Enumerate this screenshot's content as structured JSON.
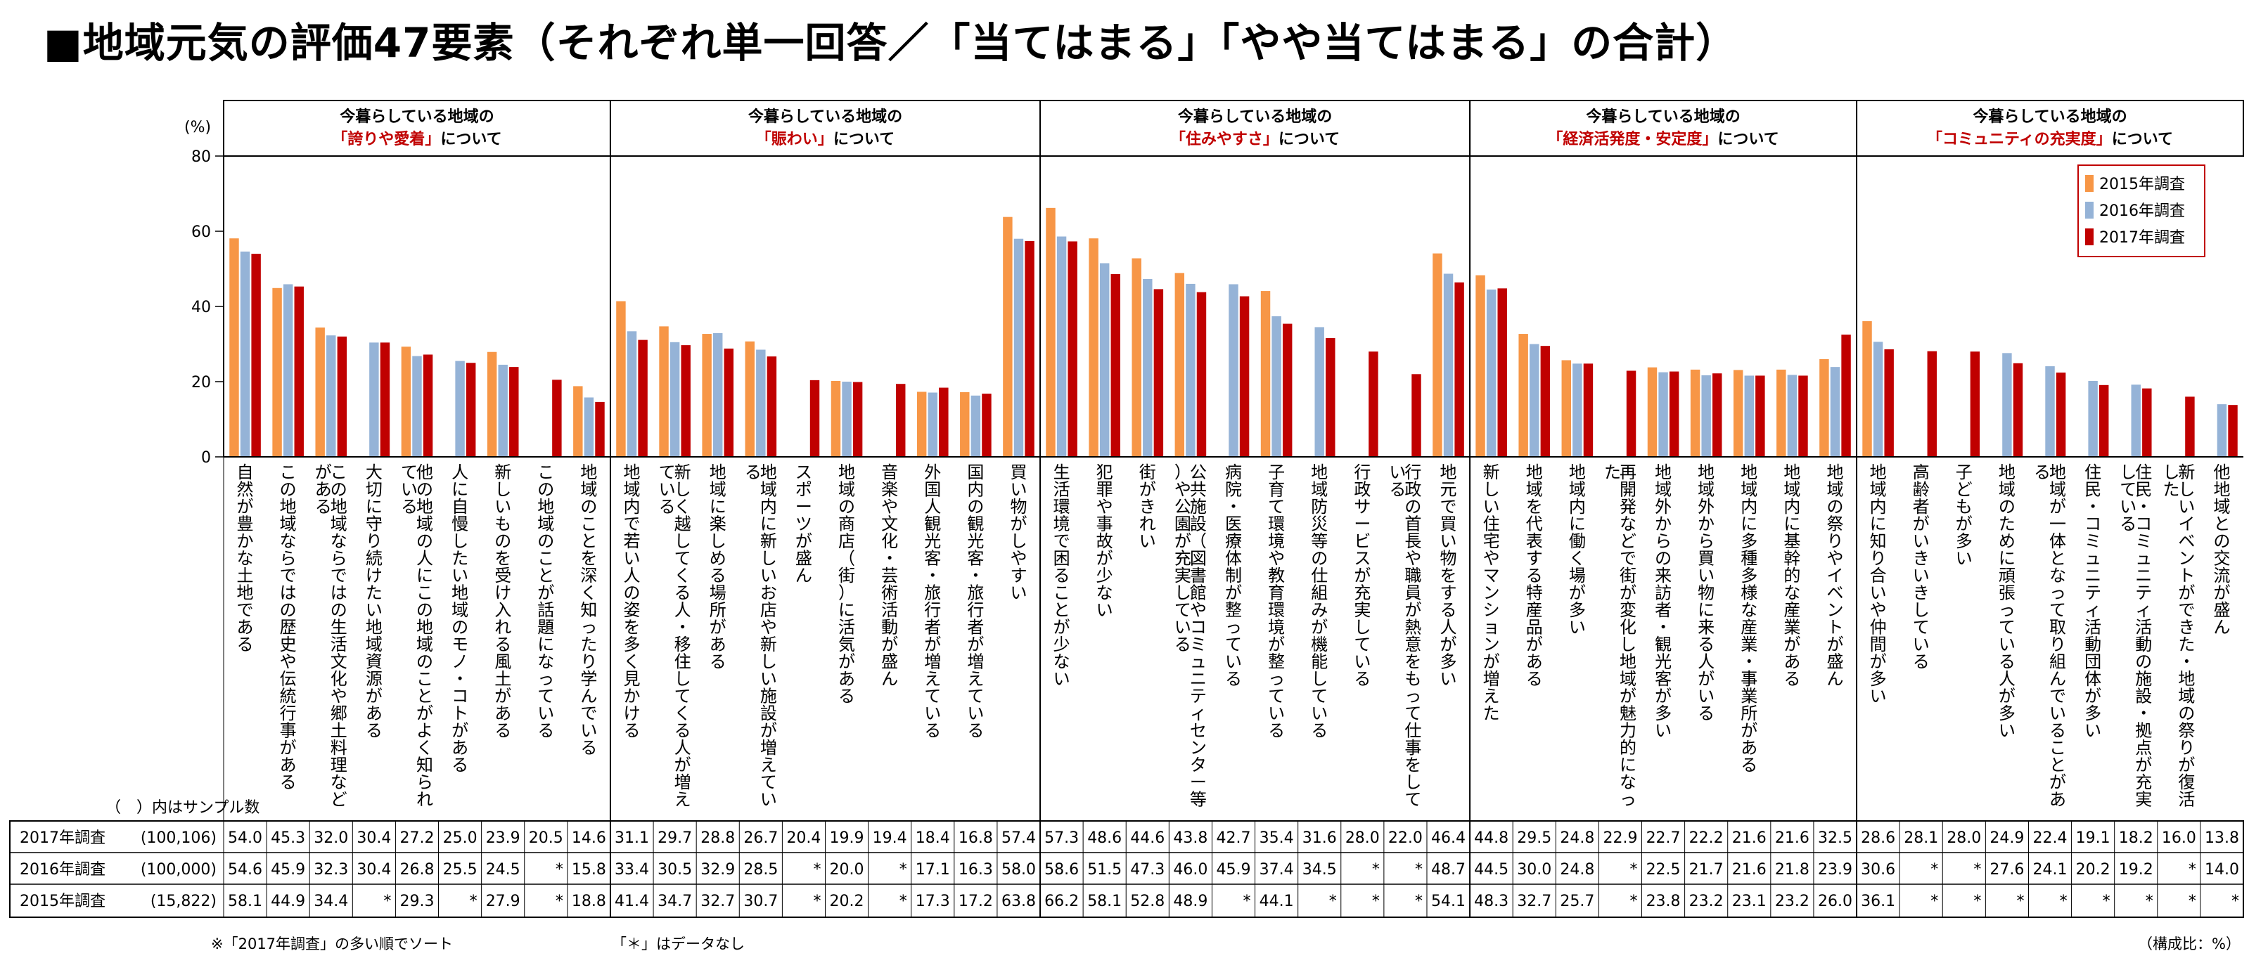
{
  "title": "■地域元気の評価47要素（それぞれ単一回答／「当てはまる」「やや当てはまる」の合計）",
  "colors": {
    "s2015": "#F79646",
    "s2016": "#95B3D7",
    "s2017": "#C00000",
    "header_accent": "#C00000"
  },
  "footnotes": {
    "sort_note": "※「2017年調査」の多い順でソート",
    "na_note": "「＊」はデータなし",
    "unit_note": "（構成比：%）",
    "sample_note": "（　）内はサンプル数"
  },
  "chart_data": {
    "type": "bar",
    "ylabel": "(%)",
    "ylim": [
      0,
      80
    ],
    "yticks": [
      0,
      20,
      40,
      60,
      80
    ],
    "legend_position": "top-right",
    "groups": [
      {
        "prefix": "今暮らしている地域の",
        "highlight": "「誇りや愛着」",
        "suffix": "について",
        "count": 9
      },
      {
        "prefix": "今暮らしている地域の",
        "highlight": "「賑わい」",
        "suffix": "について",
        "count": 10
      },
      {
        "prefix": "今暮らしている地域の",
        "highlight": "「住みやすさ」",
        "suffix": "について",
        "count": 10
      },
      {
        "prefix": "今暮らしている地域の",
        "highlight": "「経済活発度・安定度」",
        "suffix": "について",
        "count": 9
      },
      {
        "prefix": "今暮らしている地域の",
        "highlight": "「コミュニティの充実度」",
        "suffix": "について",
        "count": 9
      }
    ],
    "categories": [
      "自然が豊かな土地である",
      "この地域ならではの歴史や伝統行事がある",
      "この地域ならではの生活文化や郷土料理などがある",
      "大切に守り続けたい地域資源がある",
      "他の地域の人にこの地域のことがよく知られている",
      "人に自慢したい地域のモノ・コトがある",
      "新しいものを受け入れる風土がある",
      "この地域のことが話題になっている",
      "地域のことを深く知ったり学んでいる",
      "地域内で若い人の姿を多く見かける",
      "新しく越してくる人・移住してくる人が増えている",
      "地域に楽しめる場所がある",
      "地域内に新しいお店や新しい施設が増えている",
      "スポーツが盛ん",
      "地域の商店（街）に活気がある",
      "音楽や文化・芸術活動が盛ん",
      "外国人観光客・旅行者が増えている",
      "国内の観光客・旅行者が増えている",
      "買い物がしやすい",
      "生活環境で困ることが少ない",
      "犯罪や事故が少ない",
      "街がきれい",
      "公共施設（図書館やコミュニティセンター等）や公園が充実している",
      "病院・医療体制が整っている",
      "子育て環境や教育環境が整っている",
      "地域防災等の仕組みが機能している",
      "行政サービスが充実している",
      "行政の首長や職員が熱意をもって仕事をしている",
      "地元で買い物をする人が多い",
      "新しい住宅やマンションが増えた",
      "地域を代表する特産品がある",
      "地域内に働く場が多い",
      "再開発などで街が変化し地域が魅力的になった",
      "地域外からの来訪者・観光客が多い",
      "地域外から買い物に来る人がいる",
      "地域内に多種多様な産業・事業所がある",
      "地域内に基幹的な産業がある",
      "地域の祭りやイベントが盛ん",
      "地域内に知り合いや仲間が多い",
      "高齢者がいきいきしている",
      "子どもが多い",
      "地域のために頑張っている人が多い",
      "地域が一体となって取り組んでいることがある",
      "住民・コミュニティ活動団体が多い",
      "住民・コミュニティ活動の施設・拠点が充実している",
      "新しいイベントができた・地域の祭りが復活した",
      "他地域との交流が盛ん"
    ],
    "series": [
      {
        "name": "2015年調査",
        "sample": "(15,822)",
        "values": [
          58.1,
          44.9,
          34.4,
          null,
          29.3,
          null,
          27.9,
          null,
          18.8,
          41.4,
          34.7,
          32.7,
          30.7,
          null,
          20.2,
          null,
          17.3,
          17.2,
          63.8,
          66.2,
          58.1,
          52.8,
          48.9,
          null,
          44.1,
          null,
          null,
          null,
          54.1,
          48.3,
          32.7,
          25.7,
          null,
          23.8,
          23.2,
          23.1,
          23.2,
          26.0,
          36.1,
          null,
          null,
          null,
          null,
          null,
          null,
          null,
          null
        ]
      },
      {
        "name": "2016年調査",
        "sample": "(100,000)",
        "values": [
          54.6,
          45.9,
          32.3,
          30.4,
          26.8,
          25.5,
          24.5,
          null,
          15.8,
          33.4,
          30.5,
          32.9,
          28.5,
          null,
          20.0,
          null,
          17.1,
          16.3,
          58.0,
          58.6,
          51.5,
          47.3,
          46.0,
          45.9,
          37.4,
          34.5,
          null,
          null,
          48.7,
          44.5,
          30.0,
          24.8,
          null,
          22.5,
          21.7,
          21.6,
          21.8,
          23.9,
          30.6,
          null,
          null,
          27.6,
          24.1,
          20.2,
          19.2,
          null,
          14.0
        ]
      },
      {
        "name": "2017年調査",
        "sample": "(100,106)",
        "values": [
          54.0,
          45.3,
          32.0,
          30.4,
          27.2,
          25.0,
          23.9,
          20.5,
          14.6,
          31.1,
          29.7,
          28.8,
          26.7,
          20.4,
          19.9,
          19.4,
          18.4,
          16.8,
          57.4,
          57.3,
          48.6,
          44.6,
          43.8,
          42.7,
          35.4,
          31.6,
          28.0,
          22.0,
          46.4,
          44.8,
          29.5,
          24.8,
          22.9,
          22.7,
          22.2,
          21.6,
          21.6,
          32.5,
          28.6,
          28.1,
          28.0,
          24.9,
          22.4,
          19.1,
          18.2,
          16.0,
          13.8
        ]
      }
    ]
  }
}
